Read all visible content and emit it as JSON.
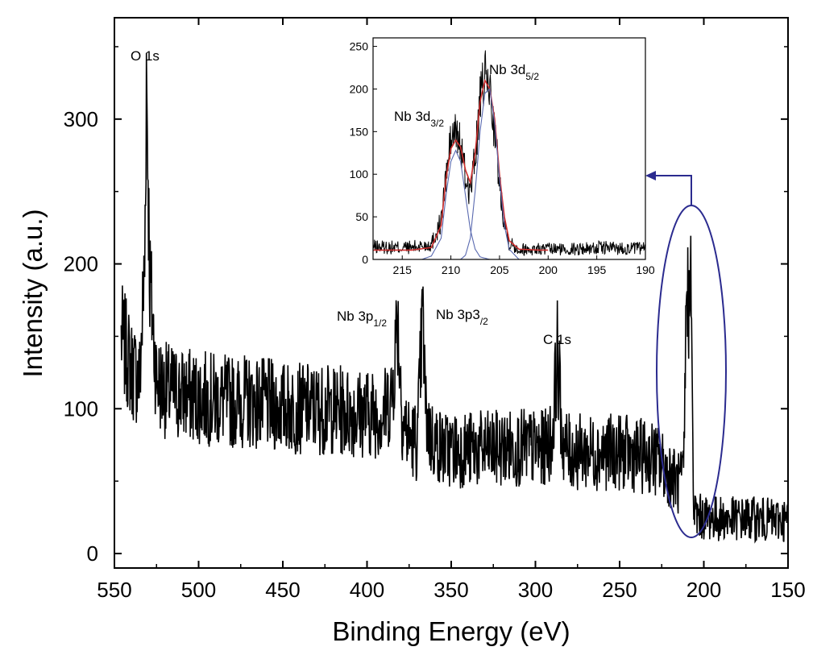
{
  "chart_data": [
    {
      "type": "line",
      "title": "",
      "xlabel": "Binding Energy (eV)",
      "ylabel": "Intensity (a.u.)",
      "xlim": [
        550,
        150
      ],
      "ylim": [
        -10,
        370
      ],
      "x_ticks": [
        550,
        500,
        450,
        400,
        350,
        300,
        250,
        200,
        150
      ],
      "y_ticks": [
        0,
        100,
        200,
        300
      ],
      "series": [
        {
          "color": "#000000",
          "x": [
            546,
            540,
            535,
            532,
            531,
            529,
            525,
            520,
            510,
            500,
            490,
            480,
            470,
            460,
            450,
            440,
            430,
            420,
            410,
            400,
            390,
            385,
            382,
            379,
            375,
            370,
            367,
            365,
            362,
            355,
            345,
            335,
            325,
            315,
            305,
            295,
            290,
            287,
            284,
            280,
            270,
            260,
            250,
            240,
            230,
            222,
            218,
            215,
            212,
            210,
            209,
            208,
            207,
            206,
            204,
            200,
            190,
            180,
            170,
            160,
            150
          ],
          "y": [
            150,
            128,
            120,
            200,
            335,
            190,
            120,
            113,
            110,
            108,
            106,
            105,
            105,
            103,
            101,
            100,
            100,
            99,
            98,
            97,
            97,
            110,
            165,
            95,
            80,
            78,
            165,
            95,
            80,
            72,
            72,
            72,
            72,
            73,
            73,
            72,
            80,
            140,
            78,
            70,
            70,
            70,
            70,
            68,
            66,
            58,
            52,
            48,
            52,
            200,
            150,
            235,
            110,
            30,
            26,
            25,
            24,
            24,
            24,
            23,
            23
          ]
        }
      ],
      "annotations": [
        {
          "label": "O 1s",
          "x": 531
        },
        {
          "label": "Nb 3p",
          "sub": "1/2",
          "x": 382
        },
        {
          "label": "Nb 3p3",
          "sub": "/2",
          "x": 366
        },
        {
          "label": "C 1s",
          "x": 286
        }
      ]
    },
    {
      "type": "line",
      "title": "",
      "xlim": [
        218,
        190
      ],
      "ylim": [
        0,
        260
      ],
      "x_ticks": [
        215,
        210,
        205,
        200,
        195,
        190
      ],
      "y_ticks": [
        0,
        50,
        100,
        150,
        200,
        250
      ],
      "series": [
        {
          "color": "#000000",
          "x": [
            218,
            216,
            214,
            212,
            211,
            210.5,
            210,
            209.5,
            209,
            208.5,
            208,
            207.5,
            207,
            206.5,
            206,
            205.5,
            205,
            204.5,
            204,
            203,
            202,
            200,
            198,
            196,
            194,
            192,
            190
          ],
          "y": [
            15,
            14,
            14,
            18,
            45,
            95,
            140,
            150,
            135,
            95,
            80,
            120,
            185,
            215,
            200,
            150,
            90,
            45,
            20,
            12,
            12,
            12,
            12,
            13,
            14,
            13,
            13
          ]
        },
        {
          "color": "#d03030",
          "x": [
            218,
            214,
            212,
            211,
            210.5,
            210,
            209.5,
            209,
            208.5,
            208,
            207.5,
            207,
            206.5,
            206,
            205.5,
            205,
            204.5,
            204,
            203,
            201,
            200
          ],
          "y": [
            11,
            11,
            14,
            40,
            95,
            130,
            140,
            132,
            105,
            90,
            125,
            185,
            210,
            200,
            165,
            100,
            50,
            22,
            12,
            11,
            11
          ]
        },
        {
          "color": "#5a6ab0",
          "x": [
            213,
            212,
            211,
            210.5,
            210,
            209.5,
            209,
            208.5,
            208,
            207.5,
            207,
            206
          ],
          "y": [
            0,
            4,
            25,
            75,
            115,
            128,
            115,
            75,
            35,
            12,
            3,
            0
          ]
        },
        {
          "color": "#5a6ab0",
          "x": [
            209,
            208.5,
            208,
            207.5,
            207,
            206.5,
            206,
            205.5,
            205,
            204.5,
            204,
            203
          ],
          "y": [
            0,
            5,
            25,
            80,
            150,
            195,
            200,
            160,
            95,
            40,
            12,
            0
          ]
        }
      ],
      "annotations": [
        {
          "label": "Nb 3d",
          "sub": "3/2",
          "x": 209.5
        },
        {
          "label": "Nb 3d",
          "sub": "5/2",
          "x": 206.5
        }
      ]
    }
  ]
}
